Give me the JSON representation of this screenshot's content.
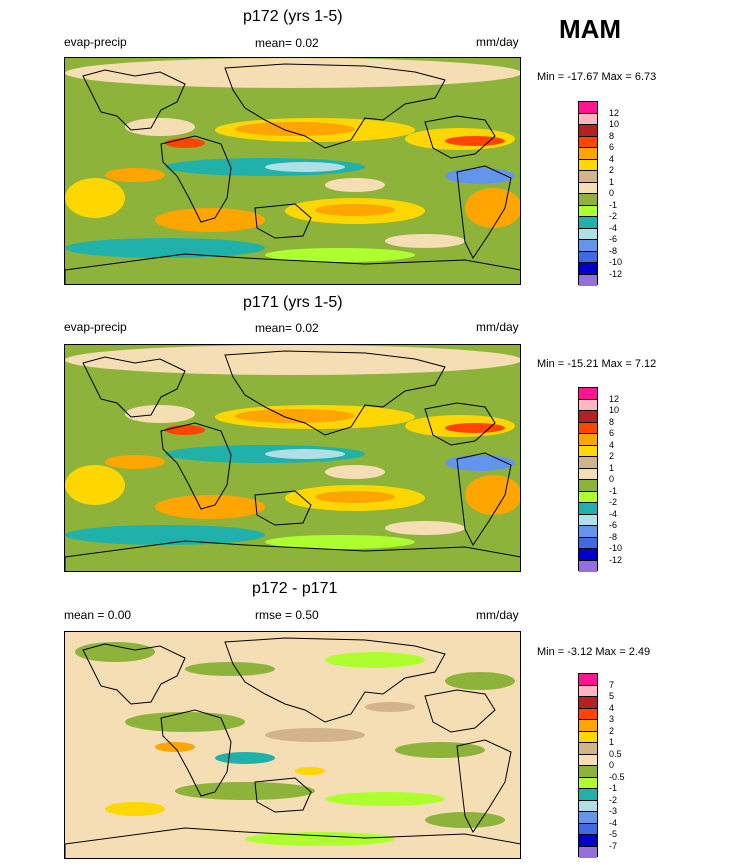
{
  "season": "MAM",
  "panels": [
    {
      "title": "p172 (yrs 1-5)",
      "left_label": "evap-precip",
      "mean_label": "mean=  0.02",
      "units": "mm/day",
      "minmax": "Min = -17.67 Max =   6.73",
      "colorbar_labels": [
        "12",
        "10",
        "8",
        "6",
        "4",
        "2",
        "1",
        "0",
        "-1",
        "-2",
        "-4",
        "-6",
        "-8",
        "-10",
        "-12"
      ],
      "colors": [
        "#ff1493",
        "#ffb6c1",
        "#b22222",
        "#ff4500",
        "#ffa500",
        "#ffd700",
        "#d2b48c",
        "#f5deb3",
        "#8db33a",
        "#adff2f",
        "#20b2aa",
        "#b0e0e6",
        "#6495ed",
        "#4169e1",
        "#0000cd",
        "#9370db"
      ],
      "chart_data": {
        "type": "heatmap",
        "variable": "evap-precip",
        "units": "mm/day",
        "mean": 0.02,
        "min": -17.67,
        "max": 6.73,
        "levels": [
          12,
          10,
          8,
          6,
          4,
          2,
          1,
          0,
          -1,
          -2,
          -4,
          -6,
          -8,
          -10,
          -12
        ]
      }
    },
    {
      "title": "p171 (yrs 1-5)",
      "left_label": "evap-precip",
      "mean_label": "mean=  0.02",
      "units": "mm/day",
      "minmax": "Min = -15.21 Max =   7.12",
      "colorbar_labels": [
        "12",
        "10",
        "8",
        "6",
        "4",
        "2",
        "1",
        "0",
        "-1",
        "-2",
        "-4",
        "-6",
        "-8",
        "-10",
        "-12"
      ],
      "colors": [
        "#ff1493",
        "#ffb6c1",
        "#b22222",
        "#ff4500",
        "#ffa500",
        "#ffd700",
        "#d2b48c",
        "#f5deb3",
        "#8db33a",
        "#adff2f",
        "#20b2aa",
        "#b0e0e6",
        "#6495ed",
        "#4169e1",
        "#0000cd",
        "#9370db"
      ],
      "chart_data": {
        "type": "heatmap",
        "variable": "evap-precip",
        "units": "mm/day",
        "mean": 0.02,
        "min": -15.21,
        "max": 7.12,
        "levels": [
          12,
          10,
          8,
          6,
          4,
          2,
          1,
          0,
          -1,
          -2,
          -4,
          -6,
          -8,
          -10,
          -12
        ]
      }
    },
    {
      "title": "p172 - p171",
      "left_label": "mean =   0.00",
      "mean_label": "rmse =   0.50",
      "units": "mm/day",
      "minmax": "Min =  -3.12 Max =   2.49",
      "colorbar_labels": [
        "7",
        "5",
        "4",
        "3",
        "2",
        "1",
        "0.5",
        "0",
        "-0.5",
        "-1",
        "-2",
        "-3",
        "-4",
        "-5",
        "-7"
      ],
      "colors": [
        "#ff1493",
        "#ffb6c1",
        "#b22222",
        "#ff4500",
        "#ffa500",
        "#ffd700",
        "#d2b48c",
        "#f5deb3",
        "#8db33a",
        "#adff2f",
        "#20b2aa",
        "#b0e0e6",
        "#6495ed",
        "#4169e1",
        "#0000cd",
        "#9370db"
      ],
      "chart_data": {
        "type": "heatmap",
        "variable": "p172 - p171",
        "units": "mm/day",
        "mean": 0.0,
        "rmse": 0.5,
        "min": -3.12,
        "max": 2.49,
        "levels": [
          7,
          5,
          4,
          3,
          2,
          1,
          0.5,
          0,
          -0.5,
          -1,
          -2,
          -3,
          -4,
          -5,
          -7
        ]
      }
    }
  ]
}
